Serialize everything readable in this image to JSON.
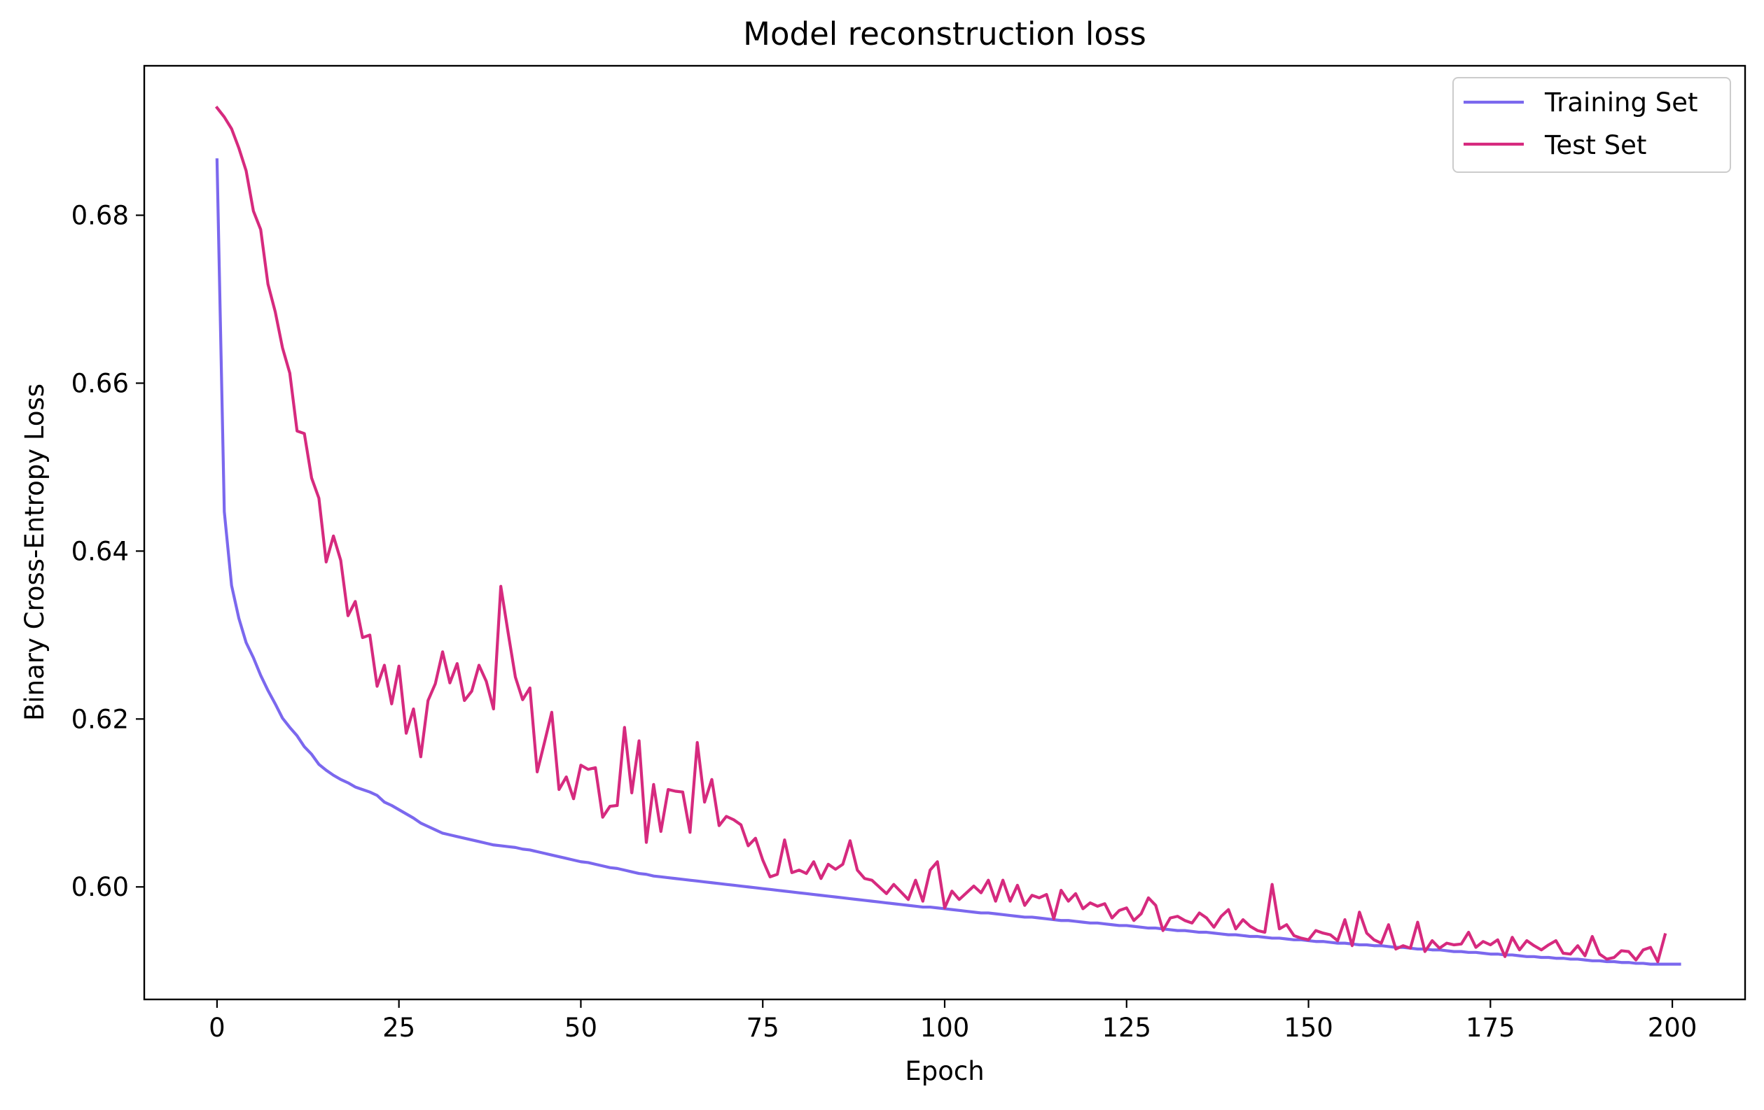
{
  "chart_data": {
    "type": "line",
    "title": "Model reconstruction loss",
    "xlabel": "Epoch",
    "ylabel": "Binary Cross-Entropy Loss",
    "xlim": [
      -10,
      210
    ],
    "ylim": [
      0.5866,
      0.6978
    ],
    "xticks": [
      0,
      25,
      50,
      75,
      100,
      125,
      150,
      175,
      200
    ],
    "xtick_labels": [
      "0",
      "25",
      "50",
      "75",
      "100",
      "125",
      "150",
      "175",
      "200"
    ],
    "yticks": [
      0.6,
      0.62,
      0.64,
      0.66,
      0.68
    ],
    "ytick_labels": [
      "0.60",
      "0.62",
      "0.64",
      "0.66",
      "0.68"
    ],
    "grid": false,
    "legend_position": "top-right",
    "series": [
      {
        "name": "Training Set",
        "color": "#7b68ee",
        "x_start": 0,
        "x_step": 1,
        "values": [
          0.6866,
          0.6447,
          0.6359,
          0.632,
          0.6291,
          0.6273,
          0.6252,
          0.6234,
          0.6218,
          0.6201,
          0.619,
          0.618,
          0.6167,
          0.6158,
          0.6146,
          0.6139,
          0.6133,
          0.6128,
          0.6124,
          0.6119,
          0.6116,
          0.6113,
          0.6109,
          0.6101,
          0.6097,
          0.6092,
          0.6087,
          0.6082,
          0.6076,
          0.6072,
          0.6068,
          0.6064,
          0.6062,
          0.606,
          0.6058,
          0.6056,
          0.6054,
          0.6052,
          0.605,
          0.6049,
          0.6048,
          0.6047,
          0.6045,
          0.6044,
          0.6042,
          0.604,
          0.6038,
          0.6036,
          0.6034,
          0.6032,
          0.603,
          0.6029,
          0.6027,
          0.6025,
          0.6023,
          0.6022,
          0.602,
          0.6018,
          0.6016,
          0.6015,
          0.6013,
          0.6012,
          0.6011,
          0.601,
          0.6009,
          0.6008,
          0.6007,
          0.6006,
          0.6005,
          0.6004,
          0.6003,
          0.6002,
          0.6001,
          0.6,
          0.5999,
          0.5998,
          0.5997,
          0.5996,
          0.5995,
          0.5994,
          0.5993,
          0.5992,
          0.5991,
          0.599,
          0.5989,
          0.5988,
          0.5987,
          0.5986,
          0.5985,
          0.5984,
          0.5983,
          0.5982,
          0.5981,
          0.598,
          0.5979,
          0.5978,
          0.5977,
          0.5976,
          0.5976,
          0.5975,
          0.5974,
          0.5973,
          0.5972,
          0.5971,
          0.597,
          0.5969,
          0.5969,
          0.5968,
          0.5967,
          0.5966,
          0.5965,
          0.5964,
          0.5964,
          0.5963,
          0.5962,
          0.5961,
          0.596,
          0.596,
          0.5959,
          0.5958,
          0.5957,
          0.5957,
          0.5956,
          0.5955,
          0.5954,
          0.5954,
          0.5953,
          0.5952,
          0.5951,
          0.5951,
          0.595,
          0.5949,
          0.5948,
          0.5948,
          0.5947,
          0.5946,
          0.5946,
          0.5945,
          0.5944,
          0.5943,
          0.5943,
          0.5942,
          0.5941,
          0.5941,
          0.594,
          0.5939,
          0.5939,
          0.5938,
          0.5937,
          0.5937,
          0.5936,
          0.5935,
          0.5935,
          0.5934,
          0.5933,
          0.5933,
          0.5932,
          0.5931,
          0.5931,
          0.593,
          0.593,
          0.5929,
          0.5928,
          0.5928,
          0.5927,
          0.5926,
          0.5926,
          0.5925,
          0.5925,
          0.5924,
          0.5923,
          0.5923,
          0.5922,
          0.5922,
          0.5921,
          0.592,
          0.592,
          0.5919,
          0.5919,
          0.5918,
          0.5917,
          0.5917,
          0.5916,
          0.5916,
          0.5915,
          0.5915,
          0.5914,
          0.5914,
          0.5913,
          0.5912,
          0.5912,
          0.5911,
          0.5911,
          0.591,
          0.591,
          0.5909,
          0.5909,
          0.5908,
          0.5908,
          0.5908,
          0.5908,
          0.5908
        ]
      },
      {
        "name": "Test Set",
        "color": "#d62a7e",
        "x_start": 0,
        "x_step": 1,
        "values": [
          0.6928,
          0.6917,
          0.6903,
          0.688,
          0.6853,
          0.6805,
          0.6783,
          0.6718,
          0.6685,
          0.6642,
          0.6612,
          0.6543,
          0.654,
          0.6487,
          0.6463,
          0.6387,
          0.6418,
          0.6389,
          0.6323,
          0.634,
          0.6297,
          0.63,
          0.6239,
          0.6264,
          0.6218,
          0.6263,
          0.6183,
          0.6212,
          0.6155,
          0.6222,
          0.6242,
          0.628,
          0.6243,
          0.6266,
          0.6222,
          0.6233,
          0.6264,
          0.6245,
          0.6212,
          0.6358,
          0.6303,
          0.625,
          0.6223,
          0.6237,
          0.6137,
          0.6172,
          0.6208,
          0.6116,
          0.6131,
          0.6105,
          0.6145,
          0.614,
          0.6142,
          0.6083,
          0.6096,
          0.6097,
          0.619,
          0.6112,
          0.6174,
          0.6053,
          0.6122,
          0.6066,
          0.6116,
          0.6114,
          0.6113,
          0.6065,
          0.6172,
          0.6101,
          0.6128,
          0.6073,
          0.6084,
          0.608,
          0.6074,
          0.6049,
          0.6058,
          0.6032,
          0.6012,
          0.6015,
          0.6056,
          0.6017,
          0.602,
          0.6016,
          0.603,
          0.601,
          0.6027,
          0.6021,
          0.6027,
          0.6055,
          0.602,
          0.601,
          0.6008,
          0.6,
          0.5992,
          0.6003,
          0.5994,
          0.5985,
          0.6008,
          0.5983,
          0.602,
          0.603,
          0.5975,
          0.5995,
          0.5985,
          0.5993,
          0.6001,
          0.5993,
          0.6008,
          0.5983,
          0.6008,
          0.5983,
          0.6002,
          0.5978,
          0.599,
          0.5987,
          0.5991,
          0.5962,
          0.5996,
          0.5983,
          0.5992,
          0.5974,
          0.5981,
          0.5977,
          0.598,
          0.5963,
          0.5972,
          0.5975,
          0.596,
          0.5968,
          0.5987,
          0.5978,
          0.5948,
          0.5963,
          0.5965,
          0.596,
          0.5957,
          0.5969,
          0.5963,
          0.5952,
          0.5965,
          0.5973,
          0.595,
          0.5961,
          0.5953,
          0.5948,
          0.5946,
          0.6003,
          0.595,
          0.5955,
          0.5942,
          0.5939,
          0.5937,
          0.5948,
          0.5945,
          0.5943,
          0.5936,
          0.5961,
          0.593,
          0.597,
          0.5945,
          0.5937,
          0.5933,
          0.5955,
          0.5926,
          0.593,
          0.5927,
          0.5958,
          0.5923,
          0.5936,
          0.5927,
          0.5933,
          0.5931,
          0.5932,
          0.5946,
          0.5928,
          0.5935,
          0.5931,
          0.5937,
          0.5917,
          0.594,
          0.5925,
          0.5936,
          0.593,
          0.5925,
          0.5931,
          0.5936,
          0.5921,
          0.592,
          0.593,
          0.5918,
          0.5941,
          0.592,
          0.5914,
          0.5916,
          0.5924,
          0.5923,
          0.5913,
          0.5925,
          0.5928,
          0.5911,
          0.5943
        ]
      }
    ]
  }
}
